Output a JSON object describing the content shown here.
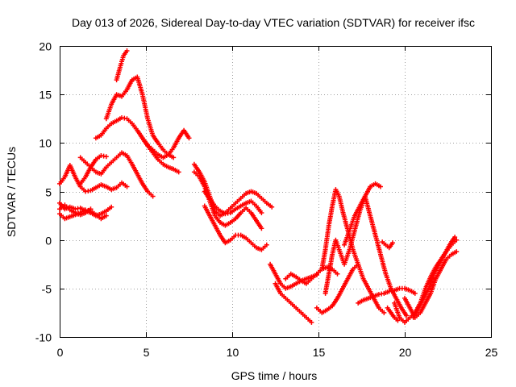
{
  "chart_data": {
    "type": "scatter",
    "title": "Day 013 of 2026, Sidereal Day-to-day VTEC variation (SDTVAR) for receiver ifsc",
    "xlabel": "GPS time / hours",
    "ylabel": "SDTVAR / TECUs",
    "xlim": [
      0,
      25
    ],
    "ylim": [
      -10,
      20
    ],
    "xticks": [
      "0",
      "5",
      "10",
      "15",
      "20",
      "25"
    ],
    "yticks": [
      "-10",
      "-5",
      "0",
      "5",
      "10",
      "15",
      "20"
    ],
    "grid": true,
    "marker": "+",
    "color": "#ff0000",
    "series": [
      {
        "x": [
          0,
          0.3,
          0.6,
          0.9,
          1.2,
          1.5,
          1.8,
          2.1,
          2.4,
          2.7,
          3.0,
          3.3,
          3.6,
          3.9
        ],
        "y": [
          5.8,
          6.5,
          7.7,
          6.5,
          5.5,
          5.0,
          5.1,
          5.4,
          5.7,
          5.5,
          5.2,
          5.4,
          5.9,
          5.5
        ]
      },
      {
        "x": [
          0,
          0.3,
          0.6,
          0.9,
          1.2,
          1.5,
          1.8,
          2.1,
          2.4,
          2.7,
          3.0
        ],
        "y": [
          3.8,
          3.2,
          3.4,
          3.2,
          3.3,
          3.0,
          2.8,
          2.5,
          2.7,
          3.0,
          3.4
        ]
      },
      {
        "x": [
          0,
          0.3,
          0.6,
          0.9,
          1.2,
          1.5,
          1.8,
          2.1,
          2.4,
          2.7
        ],
        "y": [
          2.7,
          2.2,
          2.4,
          2.6,
          2.8,
          3.1,
          3.0,
          2.6,
          2.2,
          2.5
        ]
      },
      {
        "x": [
          0,
          0.3,
          0.6,
          0.9,
          1.2,
          1.5,
          1.8
        ],
        "y": [
          3.2,
          3.6,
          3.1,
          2.8,
          2.6,
          2.8,
          3.2
        ]
      },
      {
        "x": [
          1.2,
          1.5,
          1.8,
          2.1,
          2.4,
          2.7,
          3.0,
          3.3,
          3.6,
          3.9,
          4.2,
          4.5,
          4.8,
          5.1,
          5.4
        ],
        "y": [
          8.5,
          8.0,
          7.5,
          7.0,
          6.8,
          7.5,
          8.0,
          8.5,
          9.0,
          8.7,
          7.8,
          6.8,
          5.8,
          5.0,
          4.5
        ]
      },
      {
        "x": [
          2.1,
          2.4,
          2.7,
          3.0,
          3.3,
          3.6,
          3.9,
          4.2,
          4.5,
          4.8,
          5.1,
          5.4,
          5.7,
          6.0,
          6.3,
          6.6,
          6.9
        ],
        "y": [
          10.5,
          10.8,
          11.5,
          12.0,
          12.3,
          12.6,
          12.5,
          12.0,
          11.3,
          10.5,
          9.7,
          9.0,
          8.3,
          7.8,
          7.5,
          7.3,
          7.0
        ]
      },
      {
        "x": [
          2.7,
          3.0,
          3.3,
          3.6,
          3.9,
          4.2,
          4.5,
          4.8,
          5.1,
          5.4,
          5.7,
          6.0,
          6.3,
          6.6
        ],
        "y": [
          12.5,
          14.0,
          15.0,
          14.8,
          15.5,
          16.5,
          16.8,
          15.0,
          12.5,
          10.8,
          10.0,
          9.3,
          8.8,
          8.5
        ]
      },
      {
        "x": [
          3.3,
          3.5,
          3.7,
          3.9
        ],
        "y": [
          16.5,
          17.8,
          19.0,
          19.5
        ]
      },
      {
        "x": [
          1.2,
          1.5,
          1.8,
          2.1,
          2.4,
          2.7
        ],
        "y": [
          5.8,
          6.5,
          7.5,
          8.3,
          8.7,
          8.6
        ]
      },
      {
        "x": [
          4.8,
          5.1,
          5.4,
          5.7,
          6.0,
          6.3,
          6.6,
          6.9,
          7.2,
          7.5
        ],
        "y": [
          10.5,
          9.8,
          9.3,
          8.8,
          8.5,
          8.8,
          9.5,
          10.5,
          11.3,
          10.5
        ]
      },
      {
        "x": [
          7.8,
          8.1,
          8.4,
          8.7,
          9.0,
          9.3,
          9.6,
          9.9,
          10.2,
          10.5,
          10.8,
          11.1,
          11.4,
          11.7,
          12.0,
          12.3
        ],
        "y": [
          7.8,
          7.0,
          6.0,
          4.5,
          3.0,
          2.5,
          2.8,
          3.3,
          3.8,
          4.3,
          4.8,
          5.0,
          4.8,
          4.3,
          3.8,
          3.4
        ]
      },
      {
        "x": [
          7.8,
          8.1,
          8.4,
          8.7,
          9.0,
          9.3,
          9.6,
          9.9,
          10.2,
          10.5,
          10.8,
          11.1,
          11.4,
          11.7
        ],
        "y": [
          7.0,
          6.5,
          5.5,
          4.0,
          2.5,
          1.8,
          1.5,
          1.8,
          2.2,
          2.8,
          3.3,
          2.8,
          2.0,
          1.2
        ]
      },
      {
        "x": [
          8.4,
          8.7,
          9.0,
          9.3,
          9.6,
          9.9,
          10.2,
          10.5,
          10.8,
          11.1,
          11.4,
          11.7,
          12.0
        ],
        "y": [
          3.5,
          2.5,
          1.5,
          0.5,
          -0.3,
          0.0,
          0.5,
          0.5,
          0.2,
          -0.3,
          -0.8,
          -1.0,
          -0.5
        ]
      },
      {
        "x": [
          8.4,
          8.7,
          9.0,
          9.3,
          9.6,
          9.9,
          10.2,
          10.5,
          10.8,
          11.1,
          11.4,
          11.7
        ],
        "y": [
          5.0,
          4.2,
          3.5,
          3.0,
          2.7,
          2.8,
          3.2,
          3.5,
          3.8,
          4.0,
          3.5,
          2.8
        ]
      },
      {
        "x": [
          12.2,
          12.5,
          12.8,
          13.1,
          13.4,
          13.7,
          14.0,
          14.3,
          14.6,
          14.9
        ],
        "y": [
          -2.5,
          -3.5,
          -4.5,
          -5.0,
          -4.8,
          -4.5,
          -4.2,
          -4.0,
          -3.8,
          -3.6
        ]
      },
      {
        "x": [
          12.5,
          12.8,
          13.1,
          13.4,
          13.7,
          14.0,
          14.3,
          14.6
        ],
        "y": [
          -4.5,
          -5.5,
          -6.0,
          -6.5,
          -7.0,
          -7.5,
          -8.0,
          -8.5
        ]
      },
      {
        "x": [
          13.1,
          13.4,
          13.7,
          14.0,
          14.3,
          14.6,
          14.9,
          15.2,
          15.5,
          15.8,
          16.1
        ],
        "y": [
          -4.0,
          -3.5,
          -3.8,
          -4.2,
          -4.5,
          -4.0,
          -3.5,
          -3.0,
          -2.8,
          -3.0,
          -3.5
        ]
      },
      {
        "x": [
          14.9,
          15.2,
          15.5,
          15.8,
          16.1,
          16.4,
          16.7,
          17.0,
          17.3
        ],
        "y": [
          -7.0,
          -7.5,
          -7.2,
          -6.8,
          -6.0,
          -5.0,
          -4.0,
          -3.0,
          -2.5
        ]
      },
      {
        "x": [
          15.2,
          15.4,
          15.6,
          15.8,
          16.0,
          16.2,
          16.4,
          16.7,
          17.0,
          17.3,
          17.6,
          17.9,
          18.2,
          18.5,
          18.8
        ],
        "y": [
          -3.0,
          -1.0,
          1.5,
          3.5,
          5.2,
          4.5,
          3.0,
          1.0,
          -1.0,
          -2.5,
          -4.0,
          -5.0,
          -6.0,
          -7.0,
          -7.5
        ]
      },
      {
        "x": [
          15.4,
          15.6,
          15.8,
          16.0,
          16.2,
          16.5,
          16.8,
          17.1,
          17.4,
          17.7,
          18.0,
          18.3,
          18.6
        ],
        "y": [
          -5.5,
          -3.5,
          -1.5,
          0.0,
          -1.0,
          -2.5,
          -1.0,
          1.0,
          3.0,
          4.5,
          5.5,
          5.8,
          5.5
        ]
      },
      {
        "x": [
          16.5,
          16.8,
          17.1,
          17.4,
          17.7,
          18.0,
          18.3,
          18.6,
          18.9,
          19.2,
          19.5,
          19.8,
          20.1
        ],
        "y": [
          -0.5,
          1.0,
          2.5,
          3.5,
          4.5,
          2.5,
          0.5,
          -1.5,
          -3.5,
          -5.0,
          -6.0,
          -7.0,
          -7.8
        ]
      },
      {
        "x": [
          17.3,
          17.6,
          17.9,
          18.2,
          18.5,
          18.8,
          19.1,
          19.4,
          19.7,
          20.0,
          20.3,
          20.6
        ],
        "y": [
          -6.5,
          -6.2,
          -6.0,
          -5.8,
          -5.6,
          -5.5,
          -5.3,
          -5.2,
          -5.0,
          -5.0,
          -5.2,
          -5.5
        ]
      },
      {
        "x": [
          19.4,
          19.7,
          20.0,
          20.3,
          20.6,
          20.9,
          21.2,
          21.5,
          21.8,
          22.1,
          22.4,
          22.7,
          23.0
        ],
        "y": [
          -6.5,
          -8.0,
          -8.5,
          -8.0,
          -7.5,
          -6.5,
          -5.0,
          -3.8,
          -2.8,
          -2.0,
          -1.2,
          -0.5,
          0.0
        ]
      },
      {
        "x": [
          20.0,
          20.3,
          20.6,
          20.9,
          21.2,
          21.5,
          21.8,
          22.1,
          22.4,
          22.7,
          23.0
        ],
        "y": [
          -6.0,
          -7.0,
          -8.0,
          -7.5,
          -6.5,
          -5.5,
          -4.0,
          -3.0,
          -2.0,
          -1.5,
          -1.2
        ]
      },
      {
        "x": [
          20.5,
          20.8,
          21.1,
          21.4,
          21.7,
          22.0,
          22.3,
          22.6,
          22.9
        ],
        "y": [
          -8.0,
          -7.0,
          -6.0,
          -5.0,
          -3.5,
          -2.5,
          -1.5,
          -0.5,
          0.3
        ]
      },
      {
        "x": [
          19.0,
          19.2,
          19.4,
          19.6
        ],
        "y": [
          -7.0,
          -7.5,
          -8.0,
          -8.3
        ]
      },
      {
        "x": [
          18.7,
          18.9,
          19.1,
          19.3
        ],
        "y": [
          -0.2,
          -0.5,
          -0.8,
          -0.3
        ]
      }
    ]
  }
}
